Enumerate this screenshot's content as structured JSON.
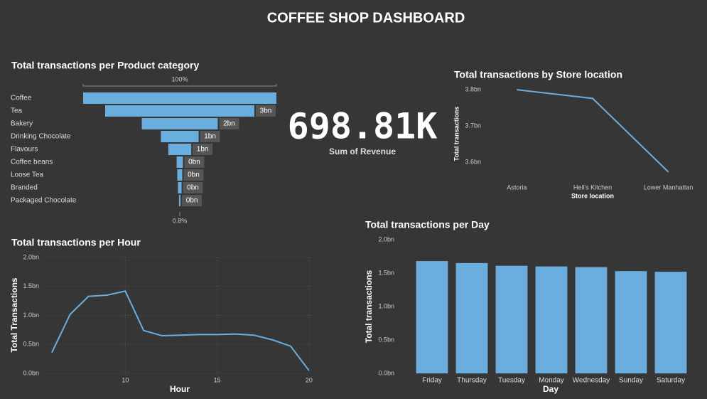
{
  "title": "COFFEE SHOP DASHBOARD",
  "kpi": {
    "value": "698.81K",
    "label": "Sum of Revenue"
  },
  "chart_data": [
    {
      "type": "funnel",
      "title": "Total transactions per Product category",
      "categories": [
        "Coffee",
        "Tea",
        "Bakery",
        "Drinking Chocolate",
        "Flavours",
        "Coffee beans",
        "Loose Tea",
        "Branded",
        "Packaged Chocolate"
      ],
      "values": [
        4.3,
        3.32,
        1.69,
        0.84,
        0.51,
        0.14,
        0.11,
        0.08,
        0.034
      ],
      "value_labels": [
        null,
        "3bn",
        "2bn",
        "1bn",
        "1bn",
        "0bn",
        "0bn",
        "0bn",
        "0bn"
      ],
      "top_label": "100%",
      "bottom_label": "0.8%",
      "color": "#6aaee0"
    },
    {
      "type": "line",
      "title": "Total transactions by Store location",
      "categories": [
        "Astoria",
        "Hell's Kitchen",
        "Lower Manhattan"
      ],
      "values": [
        3.8,
        3.776,
        3.573
      ],
      "xlabel": "Store location",
      "ylabel": "Total transactions",
      "ylim": [
        3.547,
        3.816
      ],
      "yticks": [
        {
          "value": 3.6,
          "label": "3.6bn"
        },
        {
          "value": 3.7,
          "label": "3.7bn"
        },
        {
          "value": 3.8,
          "label": "3.8bn"
        }
      ],
      "grid": false,
      "color": "#6aaee0"
    },
    {
      "type": "line",
      "title": "Total transactions per Hour",
      "x": [
        6,
        7,
        8,
        9,
        10,
        11,
        12,
        13,
        14,
        15,
        16,
        17,
        18,
        19,
        20
      ],
      "values": [
        0.36,
        1.02,
        1.33,
        1.35,
        1.42,
        0.74,
        0.65,
        0.66,
        0.67,
        0.67,
        0.68,
        0.66,
        0.58,
        0.47,
        0.05
      ],
      "xlabel": "Hour",
      "ylabel": "Total Transactions",
      "xlim": [
        5.5,
        20.2
      ],
      "xticks": [
        10,
        15,
        20
      ],
      "ylim": [
        0,
        2
      ],
      "yticks": [
        {
          "value": 0,
          "label": "0.0bn"
        },
        {
          "value": 0.5,
          "label": "0.5bn"
        },
        {
          "value": 1,
          "label": "1.0bn"
        },
        {
          "value": 1.5,
          "label": "1.5bn"
        },
        {
          "value": 2,
          "label": "2.0bn"
        }
      ],
      "grid": true,
      "color": "#6aaee0"
    },
    {
      "type": "bar",
      "title": "Total transactions per Day",
      "categories": [
        "Friday",
        "Thursday",
        "Tuesday",
        "Monday",
        "Wednesday",
        "Sunday",
        "Saturday"
      ],
      "values": [
        1.68,
        1.65,
        1.61,
        1.6,
        1.59,
        1.53,
        1.52
      ],
      "xlabel": "Day",
      "ylabel": "Total transactions",
      "ylim": [
        0,
        2
      ],
      "yticks": [
        {
          "value": 0,
          "label": "0.0bn"
        },
        {
          "value": 0.5,
          "label": "0.5bn"
        },
        {
          "value": 1,
          "label": "1.0bn"
        },
        {
          "value": 1.5,
          "label": "1.5bn"
        },
        {
          "value": 2,
          "label": "2.0bn"
        }
      ],
      "grid": false,
      "color": "#6aaee0"
    }
  ]
}
